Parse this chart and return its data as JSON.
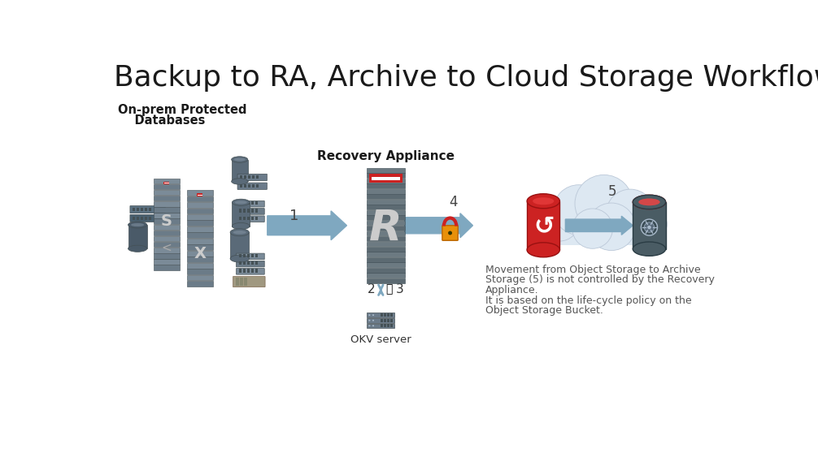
{
  "title": "Backup to RA, Archive to Cloud Storage Workflow",
  "title_fontsize": 26,
  "title_color": "#1a1a1a",
  "bg_color": "#ffffff",
  "label_on_prem_line1": "On-prem Protected",
  "label_on_prem_line2": "    Databases",
  "label_recovery": "Recovery Appliance",
  "label_okv": "OKV server",
  "annotation_line1": "Movement from Object Storage to Archive",
  "annotation_line2": "Storage (5) is not controlled by the Recovery",
  "annotation_line3": "Appliance.",
  "annotation_line4": "It is based on the life-cycle policy on the",
  "annotation_line5": "Object Storage Bucket.",
  "annotation_color": "#555555",
  "annotation_fontsize": 9.0,
  "step1": "1",
  "step2": "2",
  "step3": "3",
  "step4": "4",
  "step5": "5",
  "arrow_color": "#7fa8c0",
  "server_dark": "#6b7b8a",
  "server_mid": "#8a9aaa",
  "server_light": "#a0b0be",
  "red_color": "#cc2222",
  "teal_color": "#5a8090",
  "dark_gray": "#555555",
  "light_gray": "#aaaaaa",
  "cloud_color": "#dce8f0",
  "cloud_edge": "#c0d0dc",
  "rack_dark": "#5c6a72",
  "rack_mid": "#6e7e86",
  "rack_light": "#7e8e96",
  "okv_color": "#6b7b8a",
  "tape_color": "#a09880",
  "rack_red": "#cc2222",
  "rack_white": "#ffffff",
  "R_color": "#cccccc",
  "archive_body": "#4a5a62",
  "obj_red": "#cc2222"
}
